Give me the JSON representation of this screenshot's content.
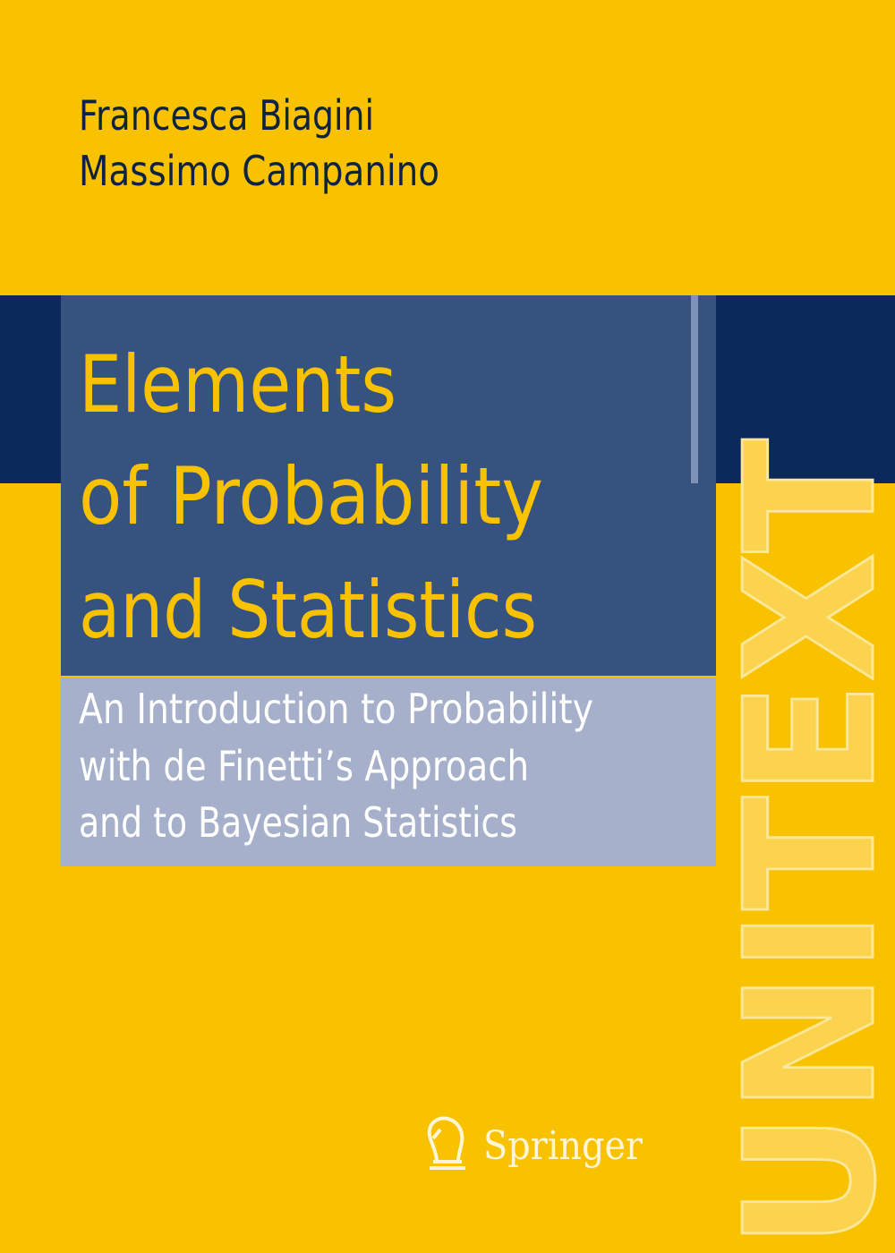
{
  "authors": [
    "Francesca Biagini",
    "Massimo Campanino"
  ],
  "title": [
    "Elements",
    "of Probability",
    "and Statistics"
  ],
  "subtitle": [
    "An Introduction to Probability",
    "with de Finetti’s Approach",
    "and to Bayesian Statistics"
  ],
  "series": "UNITEXT",
  "publisher": "Springer"
}
